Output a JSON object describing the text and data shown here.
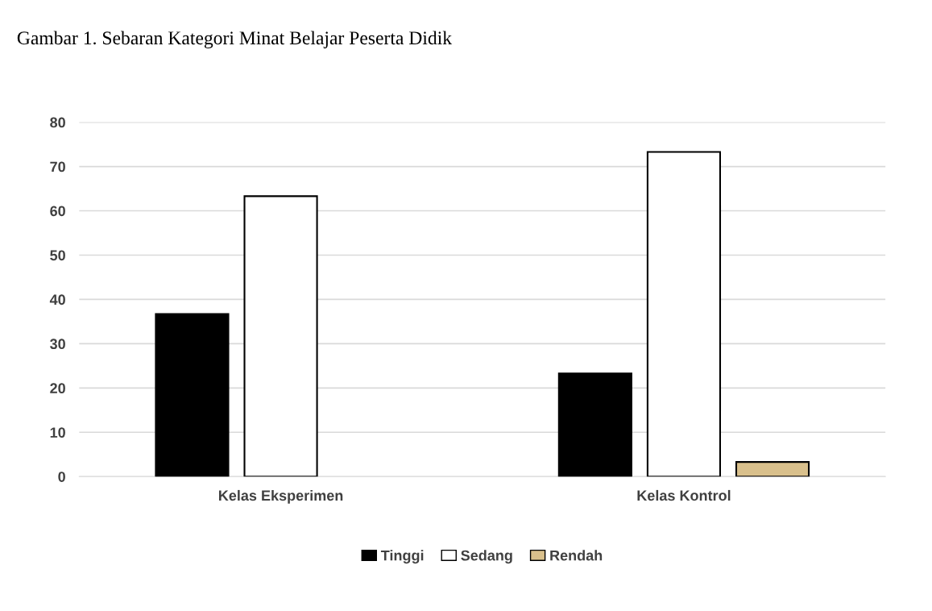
{
  "chart_data": {
    "type": "bar",
    "title": "Gambar 1. Sebaran Kategori Minat Belajar Peserta Didik",
    "categories": [
      "Kelas Eksperimen",
      "Kelas Kontrol"
    ],
    "series": [
      {
        "name": "Tinggi",
        "color": "#000000",
        "values": [
          36.7,
          23.3
        ]
      },
      {
        "name": "Sedang",
        "color": "#ffffff",
        "values": [
          63.3,
          73.3
        ]
      },
      {
        "name": "Rendah",
        "color": "#d9c08c",
        "values": [
          null,
          3.3
        ]
      }
    ],
    "ylim": [
      0,
      80
    ],
    "yticks": [
      0,
      10,
      20,
      30,
      40,
      50,
      60,
      70,
      80
    ],
    "grid": "y",
    "legend": "bottom"
  }
}
